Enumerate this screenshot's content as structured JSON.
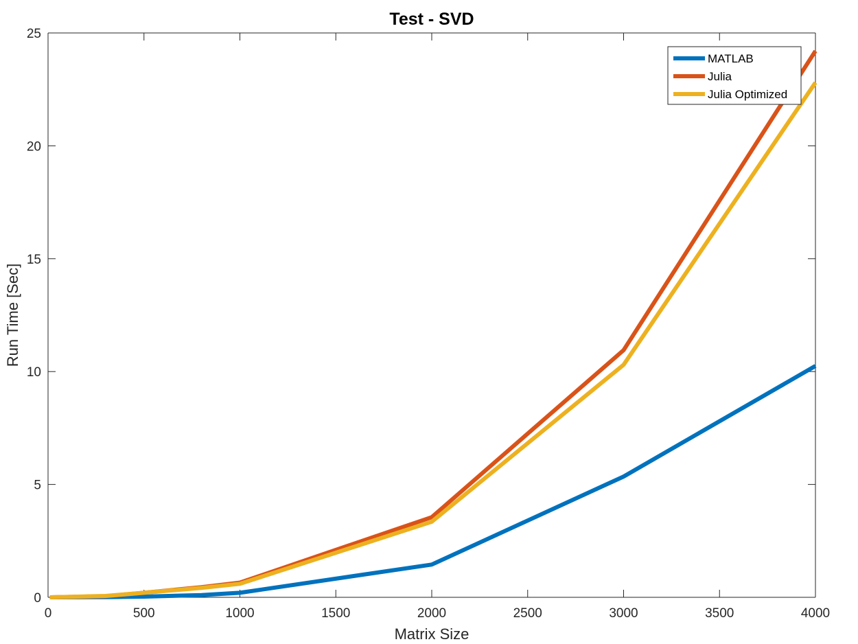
{
  "chart_data": {
    "type": "line",
    "title": "Test - SVD",
    "xlabel": "Matrix Size",
    "ylabel": "Run Time  [Sec]",
    "xlim": [
      0,
      4000
    ],
    "ylim": [
      0,
      25
    ],
    "xticks": [
      0,
      500,
      1000,
      1500,
      2000,
      2500,
      3000,
      3500,
      4000
    ],
    "yticks": [
      0,
      5,
      10,
      15,
      20,
      25
    ],
    "grid": false,
    "legend_position": "top-right",
    "x": [
      10,
      300,
      500,
      800,
      1000,
      2000,
      3000,
      4000
    ],
    "series": [
      {
        "name": "MATLAB",
        "color": "#0072BD",
        "values": [
          0.0,
          0.01,
          0.03,
          0.1,
          0.2,
          1.45,
          5.35,
          10.25
        ]
      },
      {
        "name": "Julia",
        "color": "#D95319",
        "values": [
          0.0,
          0.05,
          0.2,
          0.45,
          0.65,
          3.55,
          10.95,
          24.2
        ]
      },
      {
        "name": "Julia Optimized",
        "color": "#EDB120",
        "values": [
          0.0,
          0.06,
          0.2,
          0.42,
          0.6,
          3.35,
          10.3,
          22.8
        ]
      }
    ]
  }
}
